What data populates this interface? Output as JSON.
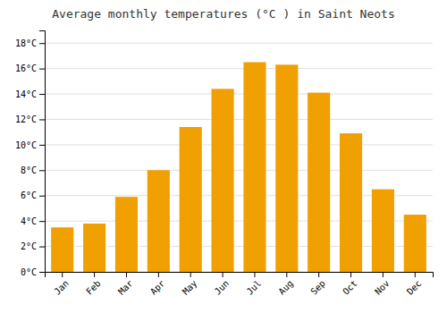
{
  "chart_data": {
    "type": "bar",
    "title": "Average monthly temperatures (°C ) in Saint Neots",
    "categories": [
      "Jan",
      "Feb",
      "Mar",
      "Apr",
      "May",
      "Jun",
      "Jul",
      "Aug",
      "Sep",
      "Oct",
      "Nov",
      "Dec"
    ],
    "values": [
      3.5,
      3.8,
      5.9,
      8.0,
      11.4,
      14.4,
      16.5,
      16.3,
      14.1,
      10.9,
      6.5,
      4.5
    ],
    "color": "#F0A000",
    "ylim": [
      0,
      19
    ],
    "yticks": [
      {
        "value": 0,
        "label": "0°C"
      },
      {
        "value": 2,
        "label": "2°C"
      },
      {
        "value": 4,
        "label": "4°C"
      },
      {
        "value": 6,
        "label": "6°C"
      },
      {
        "value": 8,
        "label": "8°C"
      },
      {
        "value": 10,
        "label": "10°C"
      },
      {
        "value": 12,
        "label": "12°C"
      },
      {
        "value": 14,
        "label": "14°C"
      },
      {
        "value": 16,
        "label": "16°C"
      },
      {
        "value": 18,
        "label": "18°C"
      }
    ],
    "grid": true
  }
}
